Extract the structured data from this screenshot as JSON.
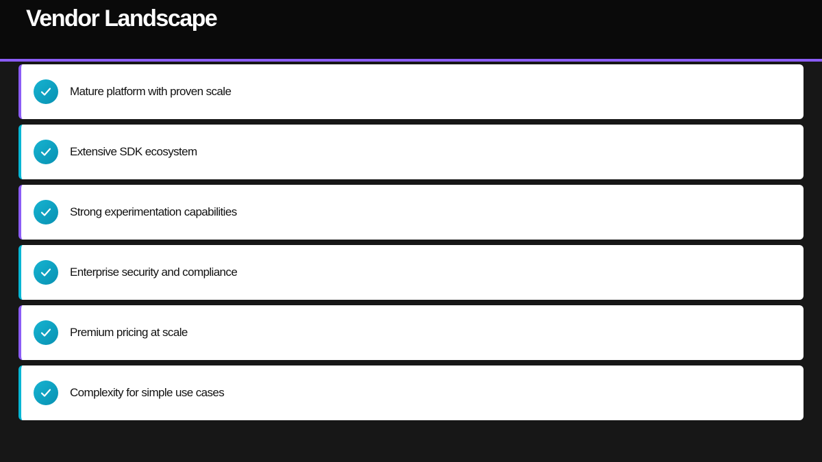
{
  "title": "Vendor Landscape",
  "colors": {
    "accent_purple": "#8b5cf6",
    "accent_cyan": "#06b6d4",
    "check": "#0ea5c6"
  },
  "items": [
    {
      "label": "Mature platform with proven scale",
      "icon": "check-circle-icon"
    },
    {
      "label": "Extensive SDK ecosystem",
      "icon": "check-circle-icon"
    },
    {
      "label": "Strong experimentation capabilities",
      "icon": "check-circle-icon"
    },
    {
      "label": "Enterprise security and compliance",
      "icon": "check-circle-icon"
    },
    {
      "label": "Premium pricing at scale",
      "icon": "check-circle-icon"
    },
    {
      "label": "Complexity for simple use cases",
      "icon": "check-circle-icon"
    }
  ]
}
